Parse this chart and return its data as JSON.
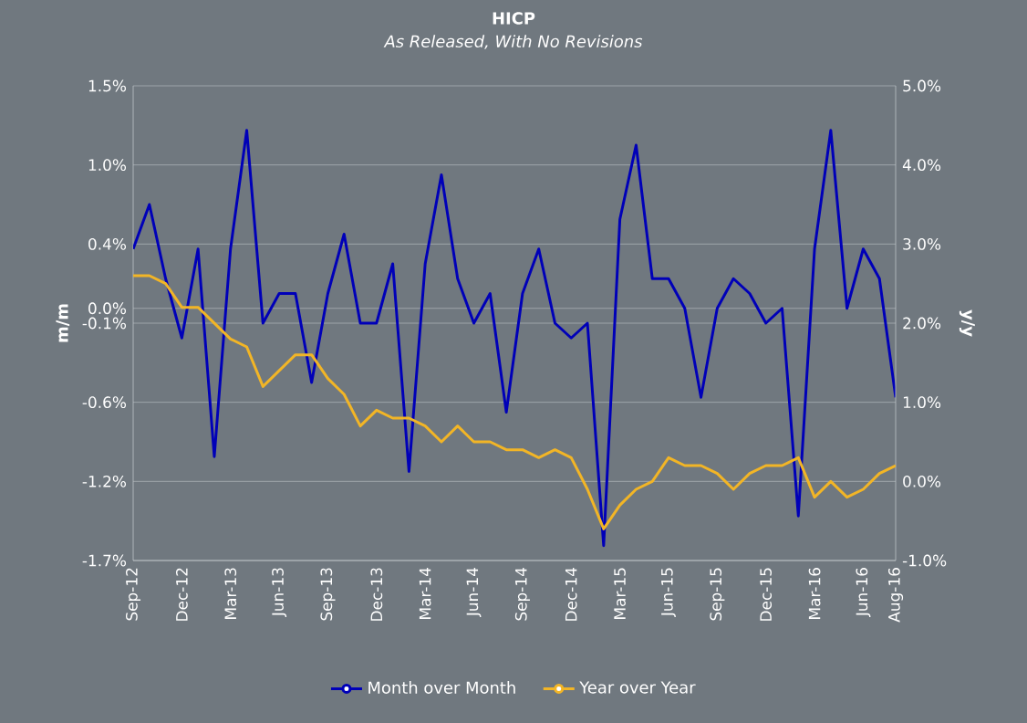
{
  "chart_data": {
    "type": "line",
    "title": "HICP",
    "subtitle": "As Released, With No Revisions",
    "ylabel": "m/m",
    "y2label": "y/y",
    "categories": [
      "Sep-12",
      null,
      null,
      "Dec-12",
      null,
      null,
      "Mar-13",
      null,
      null,
      "Jun-13",
      null,
      null,
      "Sep-13",
      null,
      null,
      "Dec-13",
      null,
      null,
      "Mar-14",
      null,
      null,
      "Jun-14",
      null,
      null,
      "Sep-14",
      null,
      null,
      "Dec-14",
      null,
      null,
      "Mar-15",
      null,
      null,
      "Jun-15",
      null,
      null,
      "Sep-15",
      null,
      null,
      "Dec-15",
      null,
      null,
      "Mar-16",
      null,
      null,
      "Jun-16",
      null,
      "Aug-16"
    ],
    "series": [
      {
        "name": "Month over Month",
        "color": "#0000b8",
        "values": [
          0.4,
          0.7,
          0.2,
          -0.2,
          0.4,
          -1.0,
          0.4,
          1.2,
          -0.1,
          0.1,
          0.1,
          -0.5,
          0.1,
          0.5,
          -0.1,
          -0.1,
          0.3,
          -1.1,
          0.3,
          0.9,
          0.2,
          -0.1,
          0.1,
          -0.7,
          0.1,
          0.4,
          -0.1,
          -0.2,
          -0.1,
          -1.6,
          0.6,
          1.1,
          0.2,
          0.2,
          0.0,
          -0.6,
          0.0,
          0.2,
          0.1,
          -0.1,
          0.0,
          -1.4,
          0.4,
          1.2,
          0.0,
          0.4,
          0.2,
          -0.6
        ]
      },
      {
        "name": "Year over Year",
        "color": "#f2b526",
        "axis": "y2",
        "values": [
          2.6,
          2.6,
          2.5,
          2.2,
          2.2,
          2.0,
          1.8,
          1.7,
          1.2,
          1.4,
          1.6,
          1.6,
          1.3,
          1.1,
          0.7,
          0.9,
          0.8,
          0.8,
          0.7,
          0.5,
          0.7,
          0.5,
          0.5,
          0.4,
          0.4,
          0.3,
          0.4,
          0.3,
          -0.1,
          -0.6,
          -0.3,
          -0.1,
          0.0,
          0.3,
          0.2,
          0.2,
          0.1,
          -0.1,
          0.1,
          0.2,
          0.2,
          0.3,
          -0.2,
          0.0,
          -0.2,
          -0.1,
          0.1,
          0.2
        ]
      }
    ],
    "ylim": [
      -1.7,
      1.5
    ],
    "yticks": [
      {
        "value": -1.7,
        "label": "-1.7%"
      },
      {
        "value": -1.1667,
        "label": "-1.2%"
      },
      {
        "value": -0.6333,
        "label": "-0.6%"
      },
      {
        "value": -0.1,
        "label": "-0.1%"
      },
      {
        "value": 0.0,
        "label": "0.0%"
      },
      {
        "value": 0.4333,
        "label": "0.4%"
      },
      {
        "value": 0.9667,
        "label": "1.0%"
      },
      {
        "value": 1.5,
        "label": "1.5%"
      }
    ],
    "y2lim": [
      -1.0,
      5.0
    ],
    "y2ticks": [
      {
        "value": -1.0,
        "label": "-1.0%"
      },
      {
        "value": 0.0,
        "label": "0.0%"
      },
      {
        "value": 1.0,
        "label": "1.0%"
      },
      {
        "value": 2.0,
        "label": "2.0%"
      },
      {
        "value": 3.0,
        "label": "3.0%"
      },
      {
        "value": 4.0,
        "label": "4.0%"
      },
      {
        "value": 5.0,
        "label": "5.0%"
      }
    ],
    "grid": "y",
    "legend": "bottom"
  }
}
